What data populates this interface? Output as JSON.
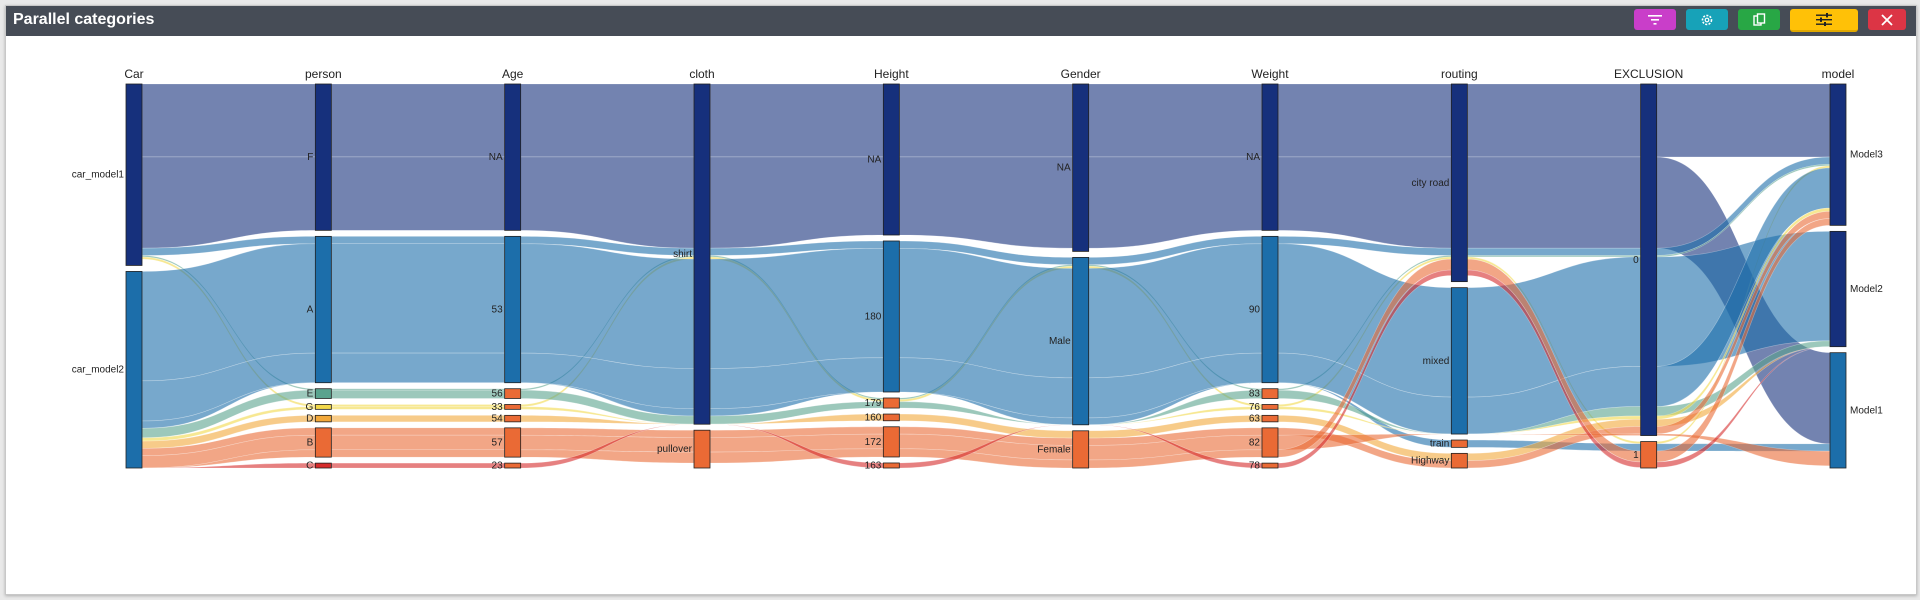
{
  "window": {
    "title": "Parallel categories"
  },
  "toolbar": [
    {
      "name": "filter-button",
      "icon": "filter-icon",
      "color": "#c93ec9"
    },
    {
      "name": "settings-button",
      "icon": "gear-icon",
      "color": "#17a2b8"
    },
    {
      "name": "copy-button",
      "icon": "copy-icon",
      "color": "#28a745"
    },
    {
      "name": "options-button",
      "icon": "sliders-icon",
      "color": "#ffc107"
    },
    {
      "name": "close-button",
      "icon": "close-icon",
      "color": "#dc3545"
    }
  ],
  "chart_data": {
    "type": "parallel_categories",
    "dimensions": [
      {
        "label": "Car",
        "categories": [
          {
            "label": "car_model1",
            "value": 0.48
          },
          {
            "label": "car_model2",
            "value": 0.52
          }
        ]
      },
      {
        "label": "person",
        "categories": [
          {
            "label": "F",
            "value": 0.45
          },
          {
            "label": "A",
            "value": 0.45
          },
          {
            "label": "E",
            "value": 0.03
          },
          {
            "label": "G",
            "value": 0.015
          },
          {
            "label": "D",
            "value": 0.02
          },
          {
            "label": "B",
            "value": 0.09
          },
          {
            "label": "C",
            "value": 0.015
          }
        ]
      },
      {
        "label": "Age",
        "categories": [
          {
            "label": "NA",
            "value": 0.45
          },
          {
            "label": "53",
            "value": 0.45
          },
          {
            "label": "56",
            "value": 0.03
          },
          {
            "label": "33",
            "value": 0.015
          },
          {
            "label": "54",
            "value": 0.02
          },
          {
            "label": "57",
            "value": 0.09
          },
          {
            "label": "23",
            "value": 0.015
          }
        ]
      },
      {
        "label": "cloth",
        "categories": [
          {
            "label": "shirt",
            "value": 0.9
          },
          {
            "label": "pullover",
            "value": 0.1
          }
        ]
      },
      {
        "label": "Height",
        "categories": [
          {
            "label": "NA",
            "value": 0.45
          },
          {
            "label": "180",
            "value": 0.45
          },
          {
            "label": "179",
            "value": 0.03
          },
          {
            "label": "160",
            "value": 0.02
          },
          {
            "label": "172",
            "value": 0.09
          },
          {
            "label": "163",
            "value": 0.015
          }
        ]
      },
      {
        "label": "Gender",
        "categories": [
          {
            "label": "NA",
            "value": 0.45
          },
          {
            "label": "Male",
            "value": 0.45
          },
          {
            "label": "Female",
            "value": 0.1
          }
        ]
      },
      {
        "label": "Weight",
        "categories": [
          {
            "label": "NA",
            "value": 0.45
          },
          {
            "label": "90",
            "value": 0.45
          },
          {
            "label": "83",
            "value": 0.03
          },
          {
            "label": "76",
            "value": 0.015
          },
          {
            "label": "63",
            "value": 0.02
          },
          {
            "label": "82",
            "value": 0.09
          },
          {
            "label": "78",
            "value": 0.015
          }
        ]
      },
      {
        "label": "routing",
        "categories": [
          {
            "label": "city road",
            "value": 0.54
          },
          {
            "label": "mixed",
            "value": 0.4
          },
          {
            "label": "train",
            "value": 0.02
          },
          {
            "label": "Highway",
            "value": 0.04
          }
        ]
      },
      {
        "label": "EXCLUSION",
        "categories": [
          {
            "label": "0",
            "value": 0.93
          },
          {
            "label": "1",
            "value": 0.07
          }
        ]
      },
      {
        "label": "model",
        "categories": [
          {
            "label": "Model3",
            "value": 0.38
          },
          {
            "label": "Model2",
            "value": 0.31
          },
          {
            "label": "Model1",
            "value": 0.31
          }
        ]
      }
    ],
    "colors": {
      "car_model1": "#16307c",
      "car_model2": "#1c6eaa",
      "E": "#5aa38e",
      "G": "#f2d84a",
      "D": "#f2a83a",
      "B": "#ea6a35",
      "C": "#d62c2c"
    },
    "flows": [
      {
        "path": [
          "car_model1",
          "F",
          "NA",
          "shirt",
          "NA",
          "NA",
          "NA",
          "city road",
          "0",
          "Model3"
        ],
        "value": 0.2,
        "color": "car_model1"
      },
      {
        "path": [
          "car_model1",
          "F",
          "NA",
          "shirt",
          "NA",
          "NA",
          "NA",
          "city road",
          "0",
          "Model1"
        ],
        "value": 0.25,
        "color": "car_model1"
      },
      {
        "path": [
          "car_model1",
          "A",
          "53",
          "shirt",
          "180",
          "Male",
          "90",
          "city road",
          "0",
          "Model3"
        ],
        "value": 0.02,
        "color": "car_model2"
      },
      {
        "path": [
          "car_model1",
          "E",
          "56",
          "shirt",
          "179",
          "Male",
          "83",
          "city road",
          "0",
          "Model3"
        ],
        "value": 0.004,
        "color": "E"
      },
      {
        "path": [
          "car_model1",
          "G",
          "33",
          "shirt",
          "179",
          "Male",
          "76",
          "city road",
          "1",
          "Model3"
        ],
        "value": 0.006,
        "color": "G"
      },
      {
        "path": [
          "car_model2",
          "A",
          "53",
          "shirt",
          "180",
          "Male",
          "90",
          "mixed",
          "0",
          "Model2"
        ],
        "value": 0.3,
        "color": "car_model2"
      },
      {
        "path": [
          "car_model2",
          "A",
          "53",
          "shirt",
          "180",
          "Male",
          "90",
          "mixed",
          "0",
          "Model3"
        ],
        "value": 0.11,
        "color": "car_model2"
      },
      {
        "path": [
          "car_model2",
          "A",
          "53",
          "shirt",
          "180",
          "Male",
          "90",
          "train",
          "1",
          "Model1"
        ],
        "value": 0.02,
        "color": "car_model2"
      },
      {
        "path": [
          "car_model2",
          "E",
          "56",
          "shirt",
          "179",
          "Male",
          "83",
          "mixed",
          "0",
          "Model2"
        ],
        "value": 0.026,
        "color": "E"
      },
      {
        "path": [
          "car_model2",
          "G",
          "33",
          "shirt",
          "179",
          "Male",
          "76",
          "mixed",
          "0",
          "Model3"
        ],
        "value": 0.009,
        "color": "G"
      },
      {
        "path": [
          "car_model2",
          "D",
          "54",
          "shirt",
          "160",
          "Female",
          "63",
          "Highway",
          "0",
          "Model2"
        ],
        "value": 0.02,
        "color": "D"
      },
      {
        "path": [
          "car_model2",
          "B",
          "57",
          "pullover",
          "172",
          "Female",
          "82",
          "Highway",
          "0",
          "Model3"
        ],
        "value": 0.02,
        "color": "B"
      },
      {
        "path": [
          "car_model2",
          "B",
          "57",
          "pullover",
          "172",
          "Female",
          "82",
          "mixed",
          "0",
          "Model1"
        ],
        "value": 0.04,
        "color": "B"
      },
      {
        "path": [
          "car_model2",
          "B",
          "57",
          "pullover",
          "172",
          "Female",
          "82",
          "city road",
          "1",
          "Model3"
        ],
        "value": 0.03,
        "color": "B"
      },
      {
        "path": [
          "car_model2",
          "C",
          "23",
          "shirt",
          "163",
          "Male",
          "78",
          "city road",
          "1",
          "Model2"
        ],
        "value": 0.015,
        "color": "C"
      }
    ]
  }
}
